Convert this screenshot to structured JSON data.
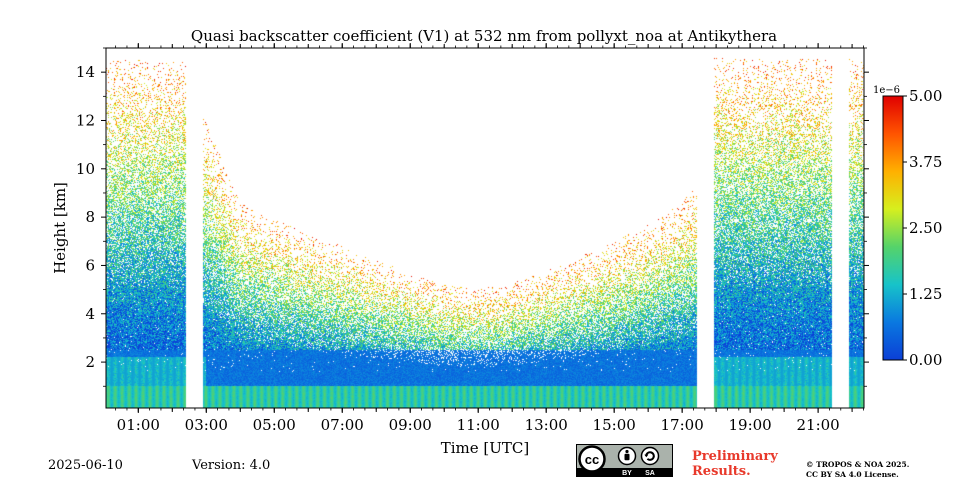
{
  "chart_data": {
    "type": "heatmap",
    "title": "Quasi backscatter coefficient (V1) at 532 nm from pollyxt_noa at Antikythera",
    "xlabel": "Time [UTC]",
    "ylabel": "Height [km]",
    "x_ticks": [
      "01:00",
      "03:00",
      "05:00",
      "07:00",
      "09:00",
      "11:00",
      "13:00",
      "15:00",
      "17:00",
      "19:00",
      "21:00"
    ],
    "x_tick_hours": [
      1,
      3,
      5,
      7,
      9,
      11,
      13,
      15,
      17,
      19,
      21
    ],
    "xlim_hours": [
      0.05,
      22.35
    ],
    "y_ticks": [
      2,
      4,
      6,
      8,
      10,
      12,
      14
    ],
    "ylim": [
      0.1,
      15
    ],
    "colorbar": {
      "scale_label": "1e−6",
      "ticks": [
        "0.00",
        "1.25",
        "2.50",
        "3.75",
        "5.00"
      ],
      "tick_values": [
        0,
        1.25,
        2.5,
        3.75,
        5.0
      ],
      "range": [
        0,
        5.0
      ],
      "colormap": [
        "#0b3fd6",
        "#0a78e0",
        "#17c3c9",
        "#55d36a",
        "#d6ef1e",
        "#ffb000",
        "#ff5400",
        "#e00000"
      ]
    },
    "data_gaps_hours": [
      [
        2.4,
        2.9
      ],
      [
        17.45,
        17.95
      ],
      [
        21.4,
        21.9
      ]
    ],
    "signal_top_km": [
      {
        "hour": 0.05,
        "km": 14.5
      },
      {
        "hour": 2.4,
        "km": 14.5
      },
      {
        "hour": 2.9,
        "km": 12.3
      },
      {
        "hour": 4,
        "km": 8.6
      },
      {
        "hour": 5,
        "km": 7.9
      },
      {
        "hour": 6,
        "km": 7.3
      },
      {
        "hour": 7,
        "km": 6.8
      },
      {
        "hour": 8,
        "km": 6.2
      },
      {
        "hour": 9,
        "km": 5.7
      },
      {
        "hour": 10,
        "km": 5.2
      },
      {
        "hour": 11,
        "km": 5.0
      },
      {
        "hour": 12,
        "km": 5.3
      },
      {
        "hour": 13,
        "km": 5.8
      },
      {
        "hour": 14,
        "km": 6.4
      },
      {
        "hour": 15,
        "km": 7.0
      },
      {
        "hour": 16,
        "km": 7.7
      },
      {
        "hour": 17,
        "km": 8.6
      },
      {
        "hour": 17.45,
        "km": 9.4
      },
      {
        "hour": 17.95,
        "km": 14.6
      },
      {
        "hour": 21.4,
        "km": 14.6
      },
      {
        "hour": 21.9,
        "km": 14.6
      },
      {
        "hour": 22.35,
        "km": 14.6
      }
    ]
  },
  "footer": {
    "date": "2025-06-10",
    "version": "Version: 4.0",
    "preliminary_line1": "Preliminary",
    "preliminary_line2": "Results.",
    "copyright_line1": "© TROPOS & NOA 2025.",
    "copyright_line2": "CC BY SA 4.0 License.",
    "license_badge_text": [
      "cc",
      "BY",
      "SA"
    ]
  }
}
